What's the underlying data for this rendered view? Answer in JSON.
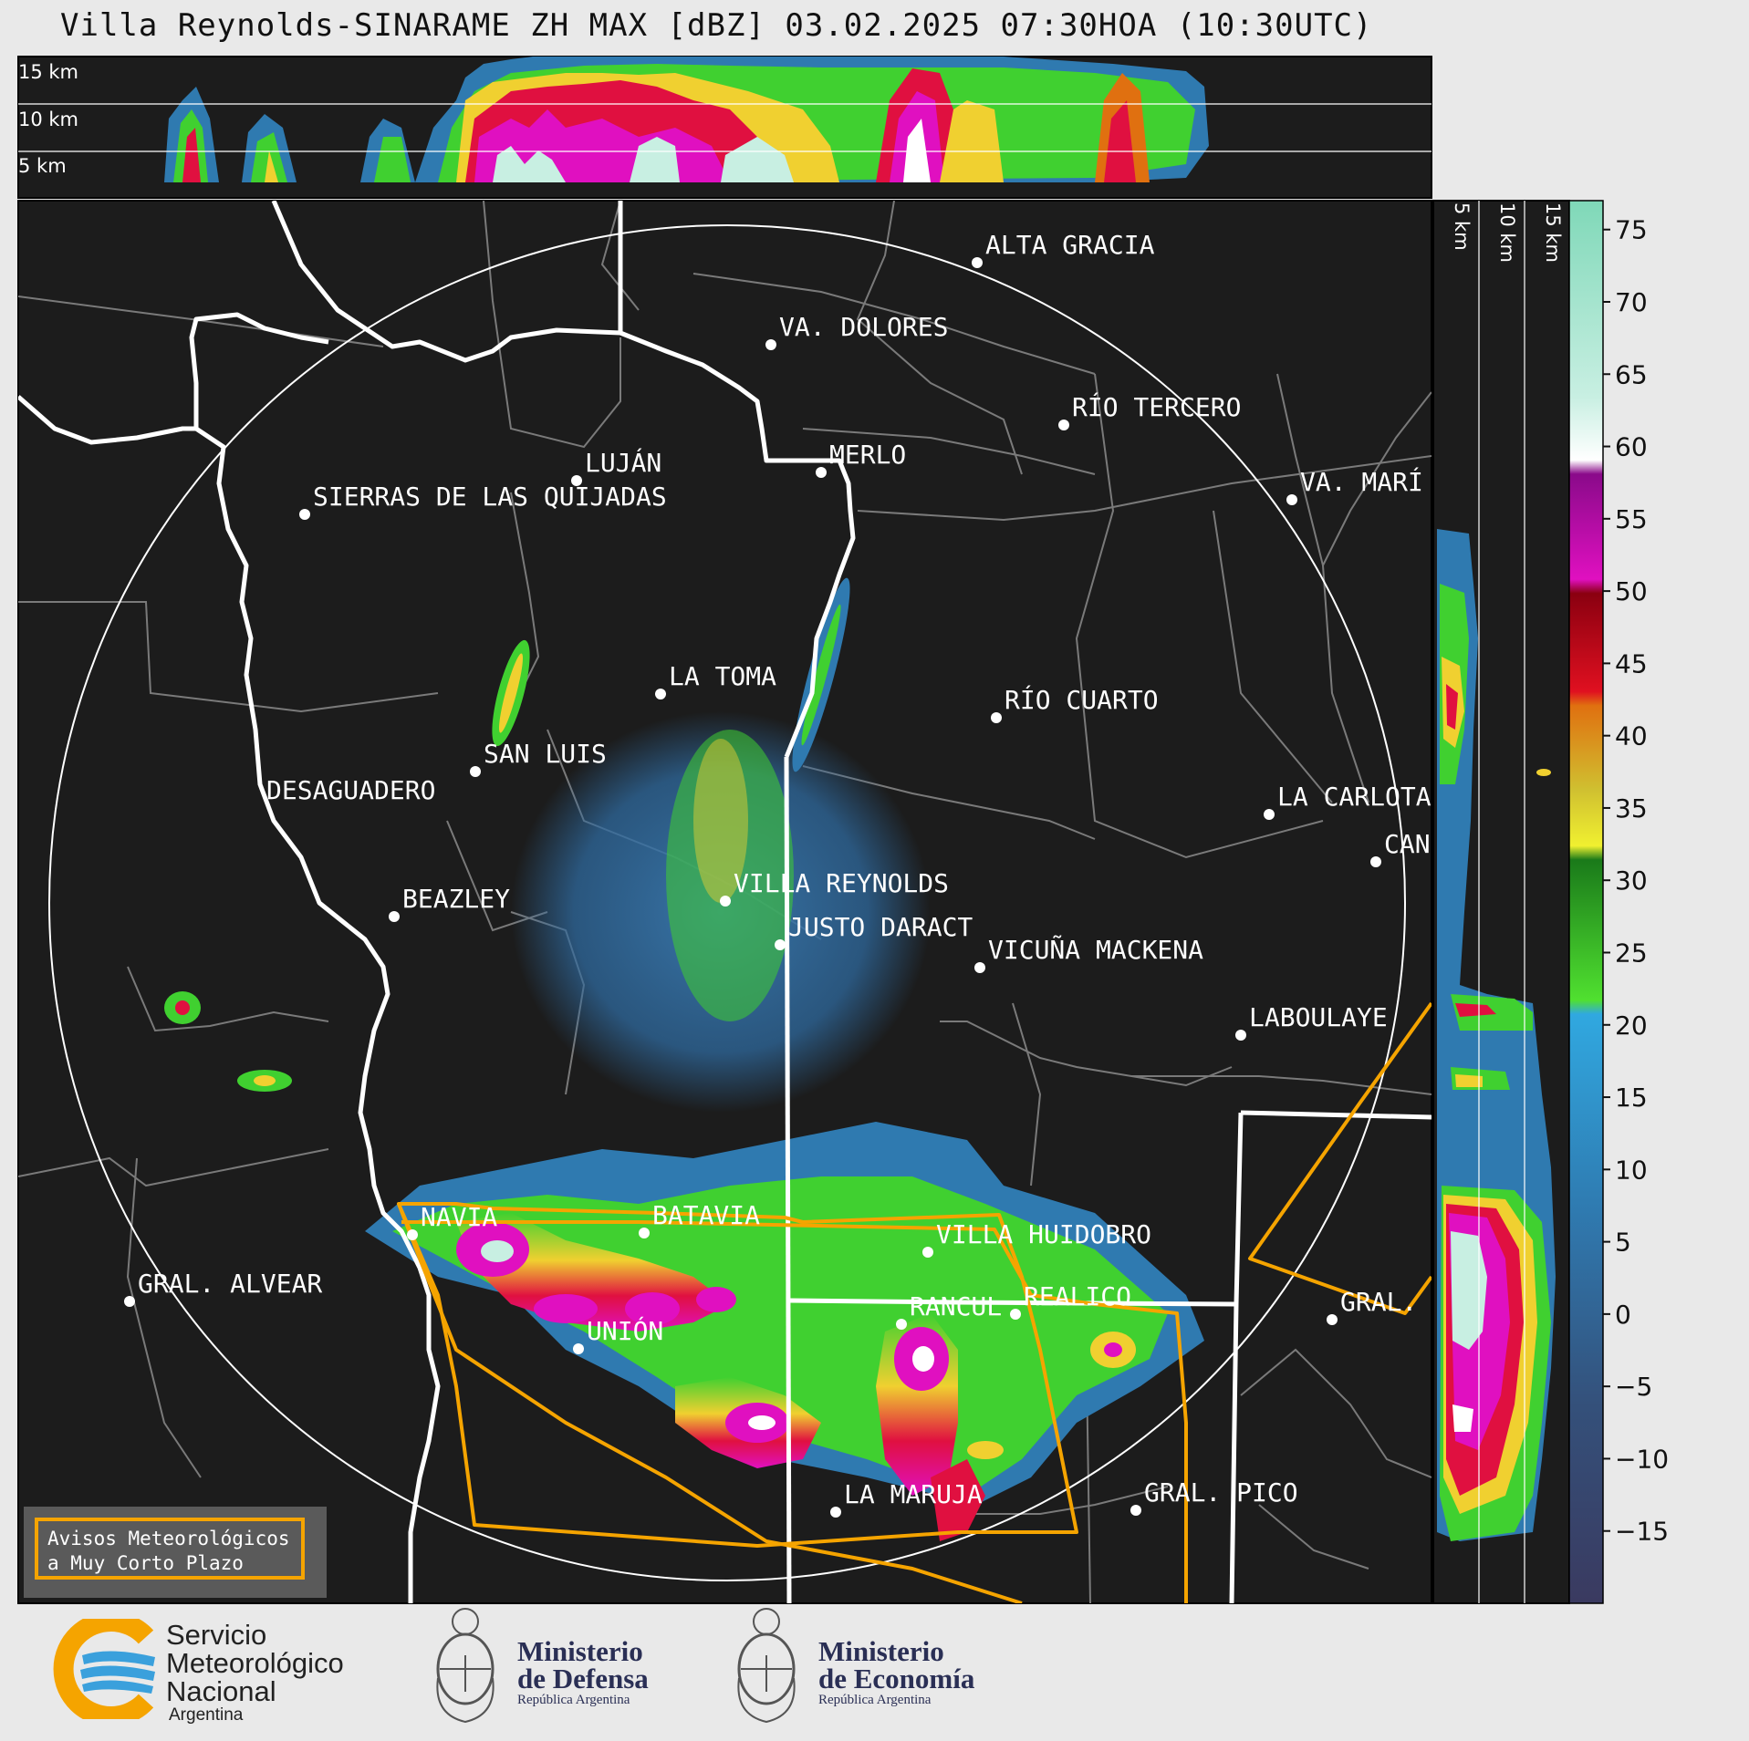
{
  "title": "Villa Reynolds-SINARAME ZH MAX [dBZ] 03.02.2025 07:30HOA (10:30UTC)",
  "top_panel": {
    "altitude_labels": [
      "15 km",
      "10 km",
      "5 km"
    ]
  },
  "side_panel": {
    "altitude_labels": [
      "5 km",
      "10 km",
      "15 km"
    ]
  },
  "colorbar": {
    "ticks": [
      "75",
      "70",
      "65",
      "60",
      "55",
      "50",
      "45",
      "40",
      "35",
      "30",
      "25",
      "20",
      "15",
      "10",
      "5",
      "0",
      "−5",
      "−10",
      "−15"
    ],
    "range": [
      -20,
      77
    ]
  },
  "cities": [
    {
      "name": "ALTA GRACIA"
    },
    {
      "name": "VA. DOLORES"
    },
    {
      "name": "RÍO TERCERO"
    },
    {
      "name": "MERLO"
    },
    {
      "name": "LUJÁN"
    },
    {
      "name": "VA. MARÍ"
    },
    {
      "name": "SIERRAS DE LAS QUIJADAS"
    },
    {
      "name": "LA TOMA"
    },
    {
      "name": "RÍO CUARTO"
    },
    {
      "name": "SAN LUIS"
    },
    {
      "name": "DESAGUADERO"
    },
    {
      "name": "LA CARLOTA"
    },
    {
      "name": "CAN"
    },
    {
      "name": "VILLA REYNOLDS"
    },
    {
      "name": "BEAZLEY"
    },
    {
      "name": "JUSTO DARACT"
    },
    {
      "name": "VICUÑA MACKENA"
    },
    {
      "name": "LABOULAYE"
    },
    {
      "name": "NAVIA"
    },
    {
      "name": "BATAVIA"
    },
    {
      "name": "VILLA HUIDOBRO"
    },
    {
      "name": "GRAL. ALVEAR"
    },
    {
      "name": "RANCUL"
    },
    {
      "name": "REALICO"
    },
    {
      "name": "GRAL."
    },
    {
      "name": "UNIÓN"
    },
    {
      "name": "LA MARUJA"
    },
    {
      "name": "GRAL. PICO"
    }
  ],
  "legend": {
    "line1": "Avisos Meteorológicos",
    "line2": "a Muy Corto Plazo"
  },
  "logos": {
    "smn": {
      "line1": "Servicio",
      "line2": "Meteorológico",
      "line3": "Nacional",
      "line4": "Argentina"
    },
    "defensa": {
      "line1": "Ministerio",
      "line2": "de Defensa",
      "line3": "República Argentina"
    },
    "economia": {
      "line1": "Ministerio",
      "line2": "de Economía",
      "line3": "República Argentina"
    }
  },
  "colors": {
    "warning": "#f5a400",
    "map_bg": "#1c1c1c",
    "boundary": "#ffffff",
    "dept": "#7a7a7a"
  }
}
